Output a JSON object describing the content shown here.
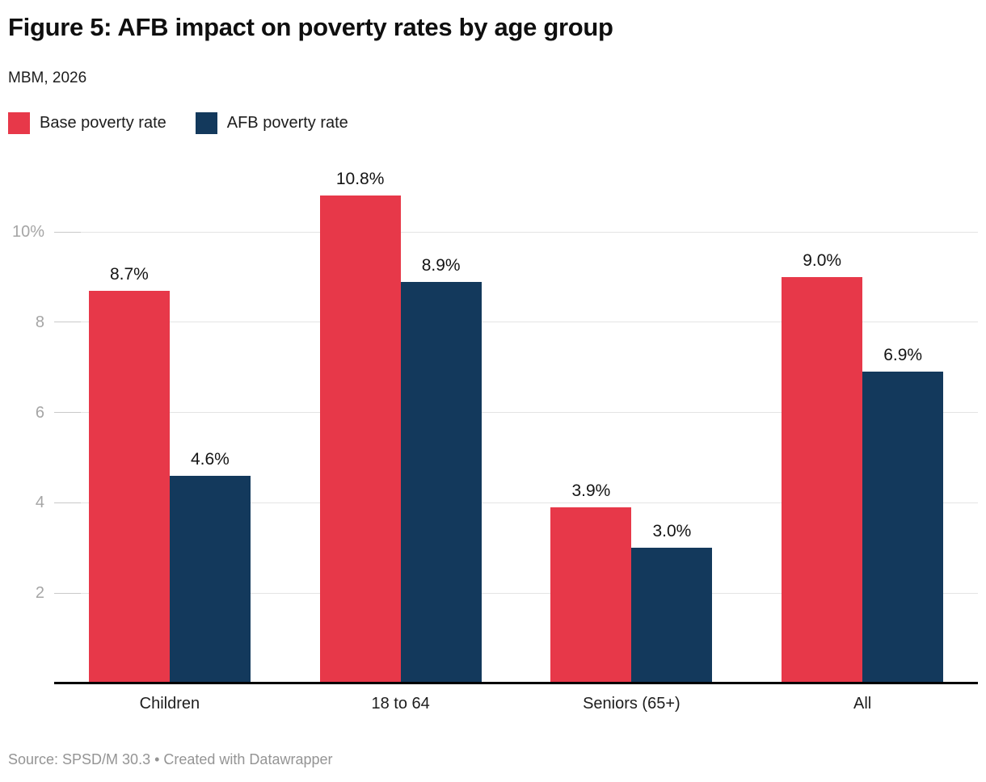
{
  "header": {
    "title": "Figure 5: AFB impact on poverty rates by age group",
    "subtitle": "MBM, 2026"
  },
  "footer": {
    "source": "Source: SPSD/M 30.3 • Created with Datawrapper"
  },
  "colors": {
    "base_series": "#e73849",
    "afb_series": "#13395c",
    "axis_line": "#000000",
    "gridline": "#e4e4e4",
    "tick_dash": "#c9c9c9",
    "tick_text": "#a5a5a5",
    "label_text": "#141414"
  },
  "chart_data": {
    "type": "bar",
    "title": "Figure 5: AFB impact on poverty rates by age group",
    "subtitle": "MBM, 2026",
    "categories": [
      "Children",
      "18 to 64",
      "Seniors (65+)",
      "All"
    ],
    "series": [
      {
        "name": "Base poverty rate",
        "color": "#e73849",
        "values": [
          8.7,
          10.8,
          3.9,
          9.0
        ],
        "labels": [
          "8.7%",
          "10.8%",
          "3.9%",
          "9.0%"
        ]
      },
      {
        "name": "AFB poverty rate",
        "color": "#13395c",
        "values": [
          4.6,
          8.9,
          3.0,
          6.9
        ],
        "labels": [
          "4.6%",
          "8.9%",
          "3.0%",
          "6.9%"
        ]
      }
    ],
    "yticks": [
      {
        "value": 2,
        "label": "2"
      },
      {
        "value": 4,
        "label": "4"
      },
      {
        "value": 6,
        "label": "6"
      },
      {
        "value": 8,
        "label": "8"
      },
      {
        "value": 10,
        "label": "10%"
      }
    ],
    "ylim": [
      0,
      11.2
    ],
    "xlabel": "",
    "ylabel": "",
    "grid": true,
    "legend_position": "top"
  }
}
